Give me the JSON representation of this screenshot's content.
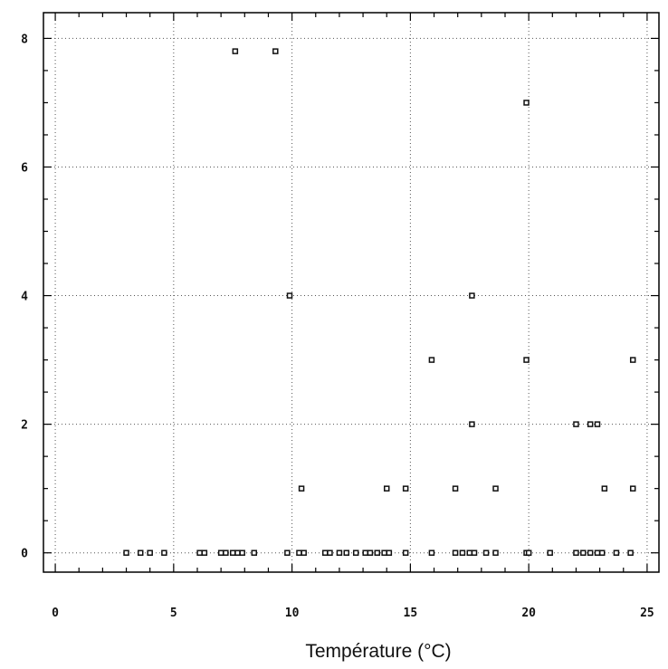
{
  "chart_data": {
    "type": "scatter",
    "title": "",
    "xlabel": "Température (°C)",
    "ylabel": "",
    "xlim": [
      -0.5,
      25.5
    ],
    "ylim": [
      -0.3,
      8.4
    ],
    "xticks": [
      0,
      5,
      10,
      15,
      20,
      25
    ],
    "yticks": [
      0,
      2,
      4,
      6,
      8
    ],
    "grid": true,
    "legend": "none",
    "colors": {
      "marker": "#111111",
      "grid": "#555555",
      "axis": "#000000"
    },
    "series": [
      {
        "points": [
          [
            3.0,
            0
          ],
          [
            3.6,
            0
          ],
          [
            4.0,
            0
          ],
          [
            4.6,
            0
          ],
          [
            6.1,
            0
          ],
          [
            6.3,
            0
          ],
          [
            7.0,
            0
          ],
          [
            7.2,
            0
          ],
          [
            7.5,
            0
          ],
          [
            7.7,
            0
          ],
          [
            7.9,
            0
          ],
          [
            8.4,
            0
          ],
          [
            9.8,
            0
          ],
          [
            10.3,
            0
          ],
          [
            10.5,
            0
          ],
          [
            11.4,
            0
          ],
          [
            11.6,
            0
          ],
          [
            12.0,
            0
          ],
          [
            12.3,
            0
          ],
          [
            12.7,
            0
          ],
          [
            13.1,
            0
          ],
          [
            13.3,
            0
          ],
          [
            13.6,
            0
          ],
          [
            13.9,
            0
          ],
          [
            14.1,
            0
          ],
          [
            14.8,
            0
          ],
          [
            15.9,
            0
          ],
          [
            16.9,
            0
          ],
          [
            17.2,
            0
          ],
          [
            17.5,
            0
          ],
          [
            17.7,
            0
          ],
          [
            18.2,
            0
          ],
          [
            18.6,
            0
          ],
          [
            19.9,
            0
          ],
          [
            20.0,
            0
          ],
          [
            20.9,
            0
          ],
          [
            22.0,
            0
          ],
          [
            22.3,
            0
          ],
          [
            22.6,
            0
          ],
          [
            22.9,
            0
          ],
          [
            23.1,
            0
          ],
          [
            23.7,
            0
          ],
          [
            24.3,
            0
          ],
          [
            10.4,
            1
          ],
          [
            14.0,
            1
          ],
          [
            14.8,
            1
          ],
          [
            16.9,
            1
          ],
          [
            18.6,
            1
          ],
          [
            23.2,
            1
          ],
          [
            24.4,
            1
          ],
          [
            17.6,
            2
          ],
          [
            22.0,
            2
          ],
          [
            22.6,
            2
          ],
          [
            22.9,
            2
          ],
          [
            15.9,
            3
          ],
          [
            19.9,
            3
          ],
          [
            24.4,
            3
          ],
          [
            9.9,
            4
          ],
          [
            17.6,
            4
          ],
          [
            19.9,
            7
          ],
          [
            7.6,
            7.8
          ],
          [
            9.3,
            7.8
          ]
        ]
      }
    ]
  }
}
